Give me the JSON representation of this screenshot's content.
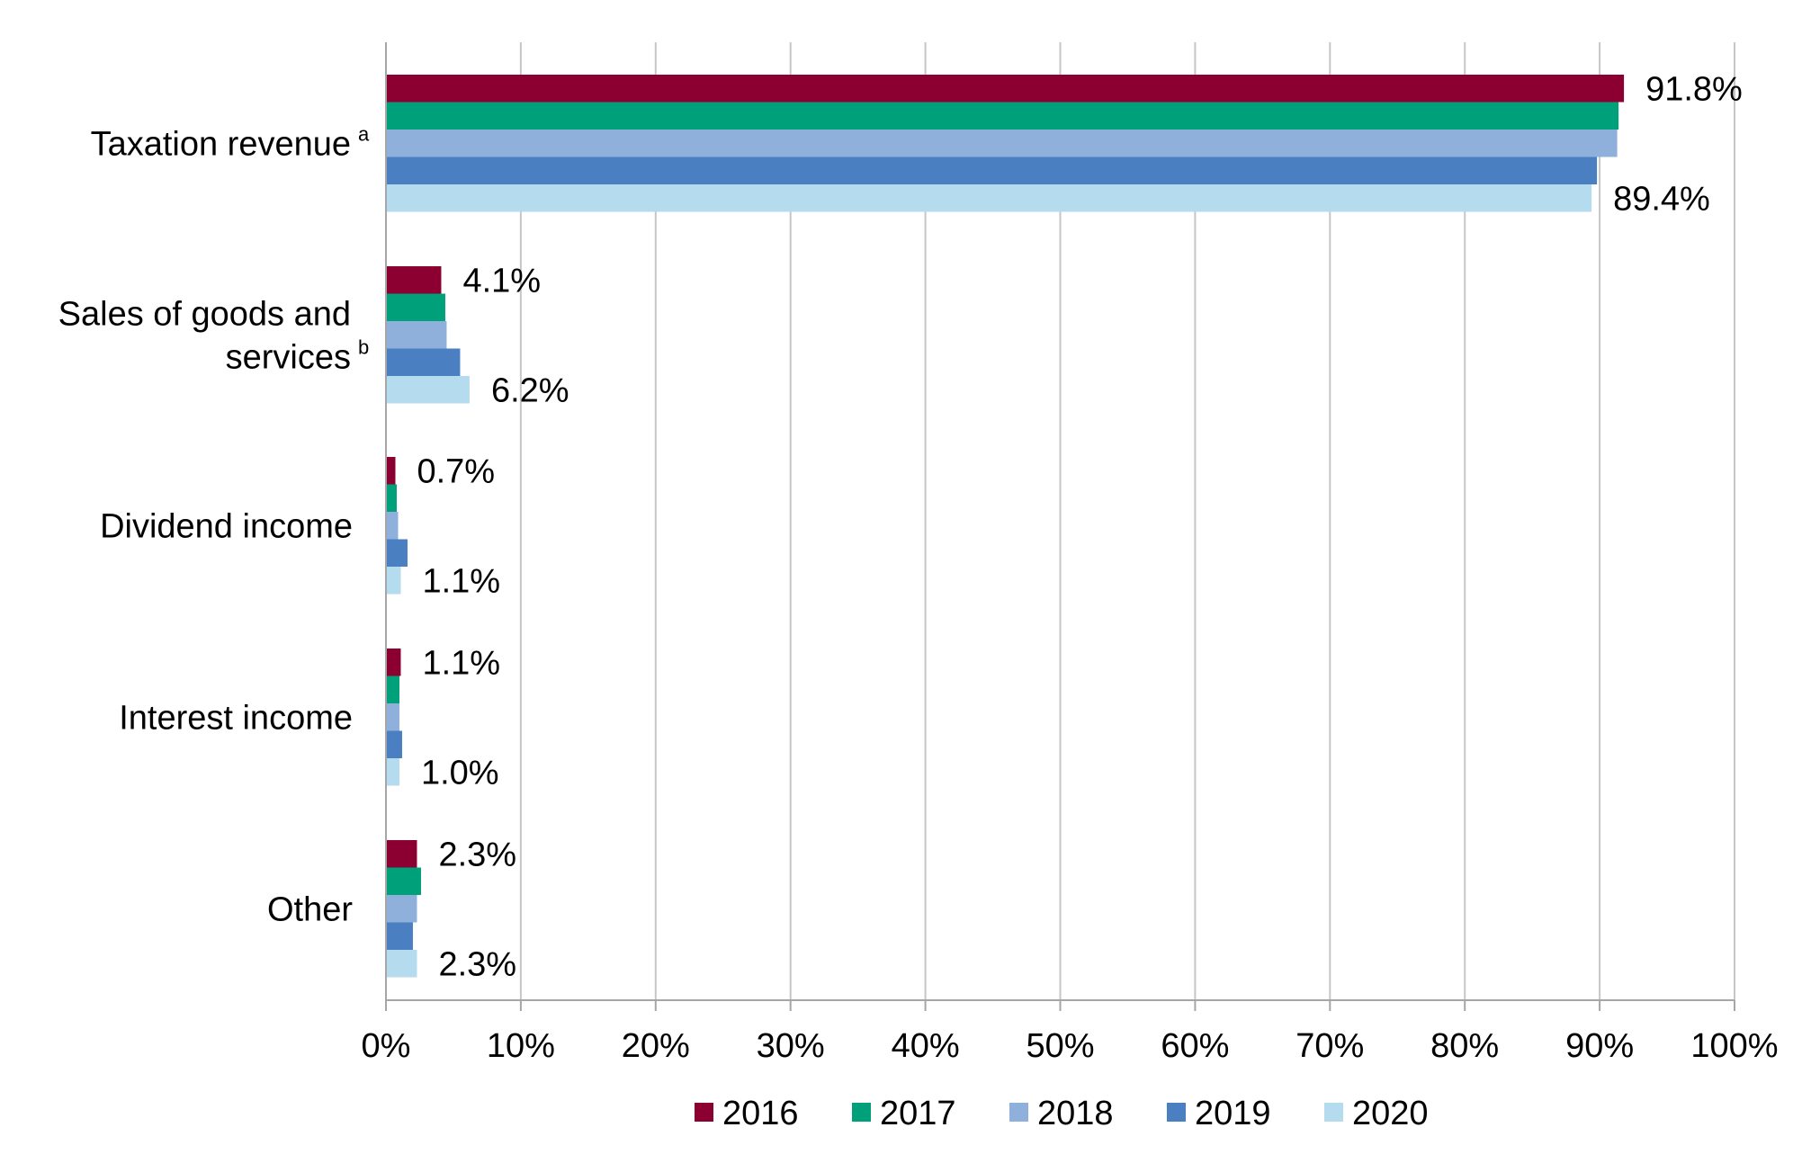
{
  "chart_data": {
    "type": "bar",
    "orientation": "horizontal",
    "title": "",
    "xlabel": "",
    "ylabel": "",
    "xlim": [
      0,
      100
    ],
    "x_ticks": [
      "0%",
      "10%",
      "20%",
      "30%",
      "40%",
      "50%",
      "60%",
      "70%",
      "80%",
      "90%",
      "100%"
    ],
    "grid": "vertical",
    "legend_position": "bottom",
    "categories": [
      {
        "lines": [
          "Taxation revenue"
        ],
        "superscript": "a"
      },
      {
        "lines": [
          "Sales of goods and",
          "services"
        ],
        "superscript": "b"
      },
      {
        "lines": [
          "Dividend income"
        ],
        "superscript": ""
      },
      {
        "lines": [
          "Interest income"
        ],
        "superscript": ""
      },
      {
        "lines": [
          "Other"
        ],
        "superscript": ""
      }
    ],
    "series": [
      {
        "name": "2016",
        "color": "#8B0030",
        "values": [
          91.8,
          4.1,
          0.7,
          1.1,
          2.3
        ]
      },
      {
        "name": "2017",
        "color": "#00A07A",
        "values": [
          91.4,
          4.4,
          0.8,
          1.0,
          2.6
        ]
      },
      {
        "name": "2018",
        "color": "#8EB0DA",
        "values": [
          91.3,
          4.5,
          0.9,
          1.0,
          2.3
        ]
      },
      {
        "name": "2019",
        "color": "#4A80C2",
        "values": [
          89.8,
          5.5,
          1.6,
          1.2,
          2.0
        ]
      },
      {
        "name": "2020",
        "color": "#B5DBEE",
        "values": [
          89.4,
          6.2,
          1.1,
          1.0,
          2.3
        ]
      }
    ],
    "data_labels": [
      {
        "category": 0,
        "series": "2016",
        "text": "91.8%"
      },
      {
        "category": 0,
        "series": "2020",
        "text": "89.4%"
      },
      {
        "category": 1,
        "series": "2016",
        "text": "4.1%"
      },
      {
        "category": 1,
        "series": "2020",
        "text": "6.2%"
      },
      {
        "category": 2,
        "series": "2016",
        "text": "0.7%"
      },
      {
        "category": 2,
        "series": "2020",
        "text": "1.1%"
      },
      {
        "category": 3,
        "series": "2016",
        "text": "1.1%"
      },
      {
        "category": 3,
        "series": "2020",
        "text": "1.0%"
      },
      {
        "category": 4,
        "series": "2016",
        "text": "2.3%"
      },
      {
        "category": 4,
        "series": "2020",
        "text": "2.3%"
      }
    ]
  }
}
